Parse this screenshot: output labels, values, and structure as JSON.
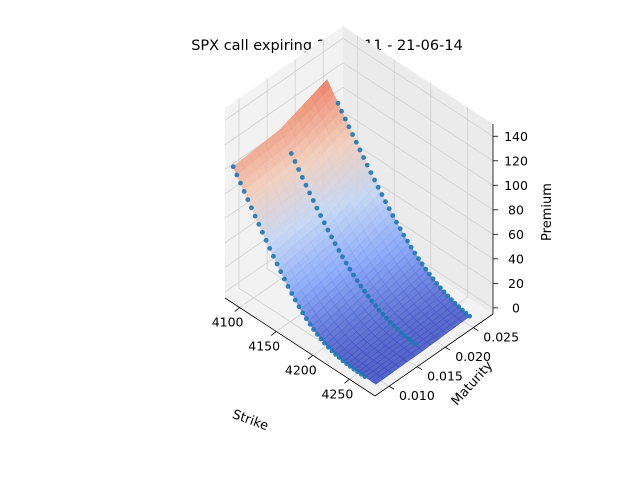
{
  "chart_data": {
    "type": "surface3d",
    "title": "SPX call expiring 21-06-11 - 21-06-14",
    "xlabel": "Strike",
    "ylabel": "Maturity",
    "zlabel": "Premium",
    "xlim": [
      4080,
      4285
    ],
    "ylim": [
      0.0075,
      0.0285
    ],
    "zlim": [
      -5,
      150
    ],
    "x_ticks": [
      4100,
      4150,
      4200,
      4250
    ],
    "y_ticks": [
      0.01,
      0.015,
      0.02,
      0.025
    ],
    "y_tick_labels": [
      "0.010",
      "0.015",
      "0.020",
      "0.025"
    ],
    "z_ticks": [
      0,
      20,
      40,
      60,
      80,
      100,
      120,
      140
    ],
    "grid": true,
    "colormap": "coolwarm",
    "point_color": "#1f77b4",
    "series": [
      {
        "maturity": 0.0083,
        "strike_start": 4085,
        "strike_end": 4265,
        "strike_step": 5,
        "premium": [
          101.5,
          96.7,
          92.0,
          87.2,
          82.4,
          77.7,
          72.9,
          68.2,
          63.6,
          59.0,
          54.4,
          49.9,
          45.5,
          41.2,
          37.1,
          33.1,
          29.3,
          25.8,
          22.4,
          19.3,
          16.5,
          13.9,
          11.6,
          9.6,
          7.8,
          6.3,
          5.0,
          3.9,
          3.0,
          2.3,
          1.7,
          1.3,
          1.0,
          0.7,
          0.6,
          0.5,
          0.4
        ]
      },
      {
        "maturity": 0.0167,
        "strike_start": 4100,
        "strike_end": 4270,
        "strike_step": 5,
        "premium": [
          91.4,
          86.8,
          82.2,
          77.7,
          73.3,
          69.0,
          64.7,
          60.5,
          56.4,
          52.4,
          48.5,
          44.8,
          41.2,
          37.7,
          34.4,
          31.2,
          28.2,
          25.4,
          22.8,
          20.3,
          18.0,
          15.9,
          13.9,
          12.1,
          10.5,
          9.0,
          7.7,
          6.5,
          5.5,
          4.6,
          3.8,
          3.1,
          2.6,
          2.1,
          1.7
        ]
      },
      {
        "maturity": 0.025,
        "strike_start": 4100,
        "strike_end": 4280,
        "strike_step": 5,
        "premium": [
          105.9,
          101.4,
          97.0,
          92.6,
          88.2,
          83.9,
          79.6,
          75.3,
          71.1,
          66.9,
          62.8,
          58.8,
          54.9,
          51.0,
          47.2,
          43.6,
          40.1,
          36.7,
          33.5,
          30.4,
          27.5,
          24.7,
          22.1,
          19.7,
          17.4,
          15.3,
          13.4,
          11.6,
          10.0,
          8.6,
          7.3,
          6.2,
          5.2,
          4.3,
          3.5,
          2.9,
          2.4
        ]
      }
    ]
  }
}
